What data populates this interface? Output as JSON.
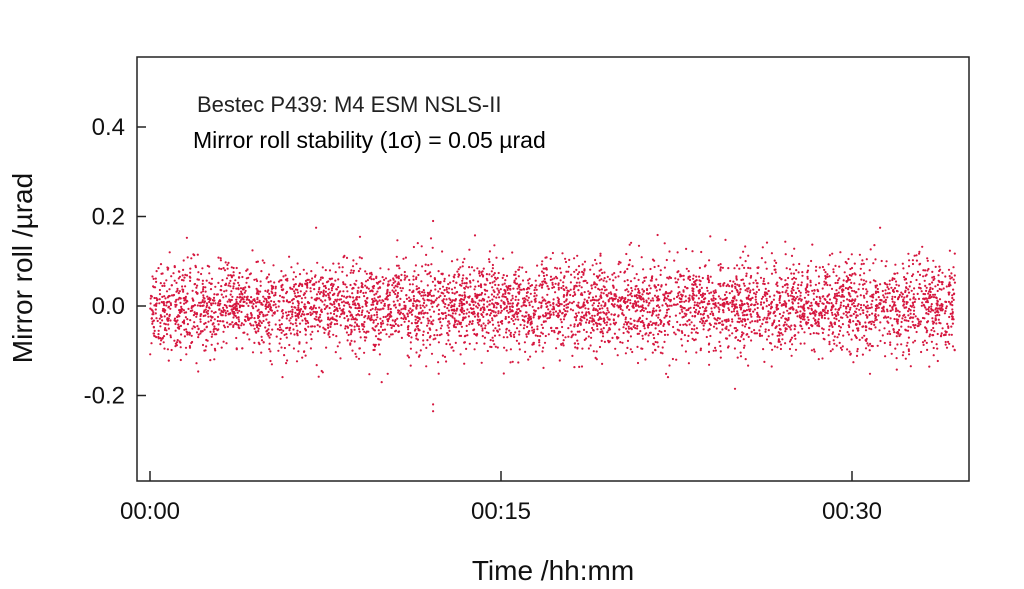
{
  "chart_data": {
    "type": "scatter",
    "title": "Bestec P439: M4 ESM NSLS-II",
    "subtitle": "Mirror roll stability (1σ) = 0.05 µrad",
    "xlabel": "Time /hh:mm",
    "ylabel": "Mirror roll /µrad",
    "x_unit": "minutes",
    "xlim": [
      0,
      35
    ],
    "ylim": [
      -0.4,
      0.55
    ],
    "x_ticks": [
      0,
      15,
      30
    ],
    "x_tick_labels": [
      "00:00",
      "00:15",
      "00:30"
    ],
    "y_ticks": [
      -0.2,
      0.0,
      0.2,
      0.4
    ],
    "y_tick_labels": [
      "-0.2",
      "0.0",
      "0.2",
      "0.4"
    ],
    "grid": false,
    "series": [
      {
        "color": "#d6173f",
        "x_range": [
          0,
          34.4
        ],
        "mean": 0.0,
        "std_dev": 0.05,
        "outliers": [
          {
            "x": 12.1,
            "y": -0.22
          },
          {
            "x": 12.1,
            "y": -0.235
          },
          {
            "x": 12.1,
            "y": 0.19
          },
          {
            "x": 7.1,
            "y": 0.175
          },
          {
            "x": 31.2,
            "y": 0.175
          },
          {
            "x": 25.0,
            "y": -0.185
          },
          {
            "x": 9.9,
            "y": -0.17
          }
        ]
      }
    ]
  }
}
